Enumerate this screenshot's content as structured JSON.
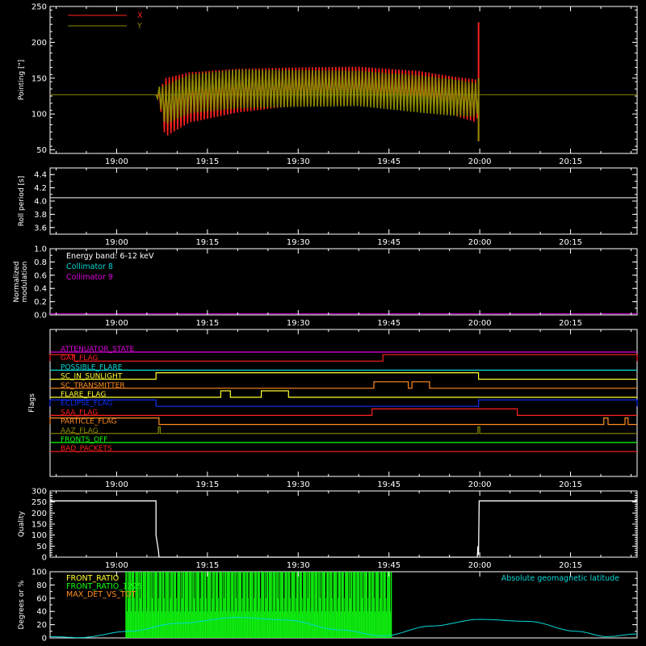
{
  "colors": {
    "background": "#000000",
    "axis": "#ffffff",
    "x_series": "#ff2020",
    "y_series": "#8b8b00",
    "white": "#ffffff",
    "cyan": "#00d8d8",
    "magenta": "#e000e0",
    "green": "#10ff10",
    "yellow": "#ffff30",
    "orange": "#ff8c20"
  },
  "time_axis": {
    "tick_labels": [
      "19:00",
      "19:15",
      "19:30",
      "19:45",
      "20:00",
      "20:15"
    ],
    "tick_minutes": [
      60,
      75,
      90,
      105,
      120,
      135
    ],
    "range_minutes": [
      49,
      146
    ]
  },
  "chart_data": [
    {
      "type": "line",
      "id": "pointing",
      "ylabel": "Pointing [\"]",
      "ylim": [
        45,
        250
      ],
      "yticks": [
        50,
        100,
        150,
        200,
        250
      ],
      "baseline": 127,
      "series": [
        {
          "name": "X",
          "color": "#ff2020",
          "envelope_x": [
            49,
            66.5,
            67,
            68,
            72,
            80,
            90,
            100,
            110,
            115,
            119.5,
            120
          ],
          "upper": [
            127,
            127,
            130,
            150,
            158,
            163,
            165,
            166,
            160,
            153,
            148,
            127
          ],
          "lower": [
            127,
            127,
            120,
            68,
            88,
            102,
            112,
            114,
            110,
            100,
            88,
            127
          ],
          "spike": {
            "x": 119.8,
            "ymin": 62,
            "ymax": 228
          }
        },
        {
          "name": "Y",
          "color": "#8b8b00",
          "envelope_x": [
            49,
            66.5,
            67,
            68,
            72,
            80,
            90,
            100,
            110,
            115,
            119.5,
            120
          ],
          "upper": [
            127,
            127,
            138,
            140,
            155,
            162,
            161,
            160,
            154,
            149,
            143,
            127
          ],
          "lower": [
            127,
            127,
            117,
            85,
            101,
            108,
            110,
            111,
            102,
            98,
            96,
            127
          ],
          "spike": {
            "x": 119.8,
            "ymin": 62,
            "ymax": 150
          }
        }
      ]
    },
    {
      "type": "line",
      "id": "roll",
      "ylabel": "Roll period [s]",
      "ylim": [
        3.5,
        4.5
      ],
      "yticks": [
        3.6,
        3.8,
        4.0,
        4.2,
        4.4
      ],
      "ytick_labels": [
        "3.6",
        "3.8",
        "4.0",
        "4.2",
        "4.4"
      ],
      "series": [
        {
          "name": "",
          "color": "#ffffff",
          "x": [
            49,
            146
          ],
          "y": [
            4.05,
            4.05
          ]
        }
      ]
    },
    {
      "type": "line",
      "id": "modulation",
      "ylabel": [
        "Normalized",
        "modulation"
      ],
      "ylim": [
        0,
        1
      ],
      "yticks": [
        0.0,
        0.2,
        0.4,
        0.6,
        0.8,
        1.0
      ],
      "ytick_labels": [
        "0.0",
        "0.2",
        "0.4",
        "0.6",
        "0.8",
        "1.0"
      ],
      "legend": [
        {
          "label": "Energy band: 6-12 keV",
          "color": "#ffffff"
        },
        {
          "label": "Collimator 8",
          "color": "#00d8d8"
        },
        {
          "label": "Collimator 9",
          "color": "#e000e0"
        }
      ],
      "series": [
        {
          "name": "Collimator 9",
          "color": "#e000e0",
          "x": [
            49,
            146
          ],
          "y": [
            0.005,
            0.005
          ]
        }
      ]
    },
    {
      "type": "step",
      "id": "flags",
      "ylabel": "Flags",
      "flags": [
        {
          "label": "ATTENUATOR_STATE",
          "color": "#e000e0",
          "high": []
        },
        {
          "label": "GAP_FLAG",
          "color": "#ff2020",
          "high": [
            [
              49,
              53
            ],
            [
              104,
              146
            ]
          ]
        },
        {
          "label": "POSSIBLE_FLARE",
          "color": "#00d8d8",
          "high": []
        },
        {
          "label": "SC_IN_SUNLIGHT",
          "color": "#ffff30",
          "high": [
            [
              66.5,
              119.8
            ]
          ]
        },
        {
          "label": "SC_TRANSMITTER",
          "color": "#ff8c20",
          "high": [
            [
              102.5,
              108.2
            ],
            [
              108.8,
              111.7
            ]
          ]
        },
        {
          "label": "FLARE_FLAG",
          "color": "#ffff30",
          "high": [
            [
              77.2,
              78.8
            ],
            [
              83.9,
              88.4
            ]
          ]
        },
        {
          "label": "ECLIPSE_FLAG",
          "color": "#1030ff",
          "high": [
            [
              49,
              66.5
            ],
            [
              119.8,
              146
            ]
          ]
        },
        {
          "label": "SAA_FLAG",
          "color": "#ff2020",
          "high": [
            [
              102.2,
              126.2
            ]
          ]
        },
        {
          "label": "PARTICLE_FLAG",
          "color": "#ff8c20",
          "high": [
            [
              49,
              67
            ],
            [
              140.5,
              141.2
            ],
            [
              144,
              144.5
            ]
          ]
        },
        {
          "label": "AAZ_FLAG",
          "color": "#8b8b00",
          "high": [
            [
              66.9,
              67.2
            ],
            [
              119.7,
              120.0
            ]
          ]
        },
        {
          "label": "FRONTS_OFF",
          "color": "#10ff10",
          "high": []
        },
        {
          "label": "BAD_PACKETS",
          "color": "#ff2020",
          "high": []
        }
      ]
    },
    {
      "type": "line",
      "id": "quality",
      "ylabel": "Quality",
      "ylim": [
        0,
        300
      ],
      "yticks": [
        0,
        50,
        100,
        150,
        200,
        250,
        300
      ],
      "series": [
        {
          "name": "",
          "color": "#ffffff",
          "x": [
            49,
            66.5,
            66.5,
            66.9,
            67,
            67.1,
            119.6,
            119.7,
            119.8,
            119.9,
            120,
            146
          ],
          "y": [
            255,
            255,
            100,
            30,
            2,
            0,
            0,
            50,
            10,
            255,
            255,
            255
          ]
        }
      ]
    },
    {
      "type": "line",
      "id": "ratios",
      "ylabel": "Degrees or %",
      "ylim": [
        0,
        100
      ],
      "yticks": [
        0,
        20,
        40,
        60,
        80,
        100
      ],
      "legend": [
        {
          "label": "FRONT_RATIO",
          "color": "#ffff30"
        },
        {
          "label": "FRONT_RATIO_1225",
          "color": "#10ff10"
        },
        {
          "label": "MAX_DET_VS_TOT",
          "color": "#ff8c20"
        }
      ],
      "right_label": {
        "label": "Absolute geomagnetic latitude",
        "color": "#00d8d8"
      },
      "green_band": [
        61.5,
        105.5
      ],
      "latitude": {
        "x": [
          49,
          54,
          62,
          70,
          80,
          88,
          97,
          104,
          112,
          120,
          128,
          136,
          141,
          146
        ],
        "y": [
          2,
          0.5,
          10,
          22,
          31,
          27,
          12,
          3,
          18,
          28,
          25,
          10,
          2,
          6
        ]
      }
    }
  ]
}
